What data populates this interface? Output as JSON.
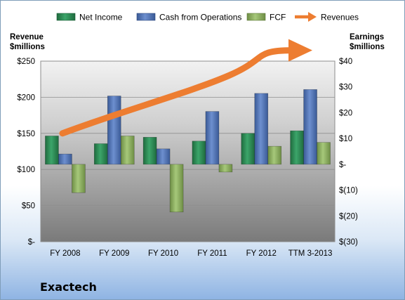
{
  "company": "Exactech",
  "chart_data": {
    "type": "bar",
    "categories": [
      "FY 2008",
      "FY 2009",
      "FY 2010",
      "FY 2011",
      "FY 2012",
      "TTM 3-2013"
    ],
    "series": [
      {
        "name": "Net Income",
        "axis": "right",
        "values": [
          11,
          8,
          10.5,
          9,
          12,
          13
        ],
        "color": "#2e8b57"
      },
      {
        "name": "Cash from Operations",
        "axis": "right",
        "values": [
          4,
          26.5,
          6,
          20.5,
          27.5,
          29
        ],
        "color": "#4f74b8"
      },
      {
        "name": "FCF",
        "axis": "right",
        "values": [
          -11,
          11,
          -18.5,
          -3,
          7,
          8.5
        ],
        "color": "#8db060"
      },
      {
        "name": "Revenues",
        "axis": "left",
        "type": "trend-arrow",
        "values": [
          150,
          180,
          205,
          230,
          265,
          265
        ],
        "color": "#ed7d31"
      }
    ],
    "left_axis": {
      "title_lines": [
        "Revenue",
        "$millions"
      ],
      "range": [
        0,
        250
      ],
      "ticks": [
        0,
        50,
        100,
        150,
        200,
        250
      ],
      "tick_labels": [
        "$-",
        "$50",
        "$100",
        "$150",
        "$200",
        "$250"
      ]
    },
    "right_axis": {
      "title_lines": [
        "Earnings",
        "$millions"
      ],
      "range": [
        -30,
        40
      ],
      "ticks": [
        -30,
        -20,
        -10,
        0,
        10,
        20,
        30,
        40
      ],
      "tick_labels": [
        "$(30)",
        "$(20)",
        "$(10)",
        "$-",
        "$10",
        "$20",
        "$30",
        "$40"
      ]
    },
    "legend_position": "top",
    "grid": true
  }
}
